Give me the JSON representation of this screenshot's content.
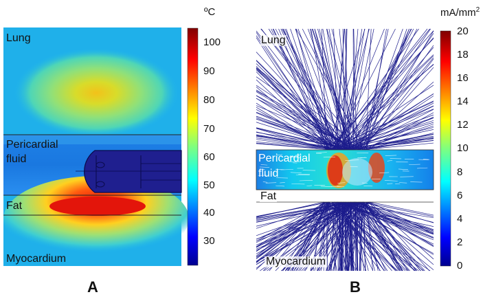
{
  "panel_a": {
    "letter": "A",
    "regions": {
      "lung": "Lung",
      "pericardial_fluid_line1": "Pericardial",
      "pericardial_fluid_line2": "fluid",
      "fat": "Fat",
      "myocardium": "Myocardium"
    },
    "colorbar": {
      "unit": "ºC",
      "ticks": [
        "100",
        "90",
        "80",
        "70",
        "60",
        "50",
        "40",
        "30"
      ]
    }
  },
  "panel_b": {
    "letter": "B",
    "regions": {
      "lung": "Lung",
      "pericardial_fluid_line1": "Pericardial",
      "pericardial_fluid_line2": "fluid",
      "fat": "Fat",
      "myocardium": "Myocardium"
    },
    "colorbar": {
      "unit_base": "mA/mm",
      "unit_exp": "2",
      "ticks": [
        "20",
        "18",
        "16",
        "14",
        "12",
        "10",
        "8",
        "6",
        "4",
        "2",
        "0"
      ]
    }
  },
  "colors": {
    "jet_dark": "#00008f",
    "field_blue": "#1a8fe0",
    "line_navy": "#1c1c8c"
  }
}
